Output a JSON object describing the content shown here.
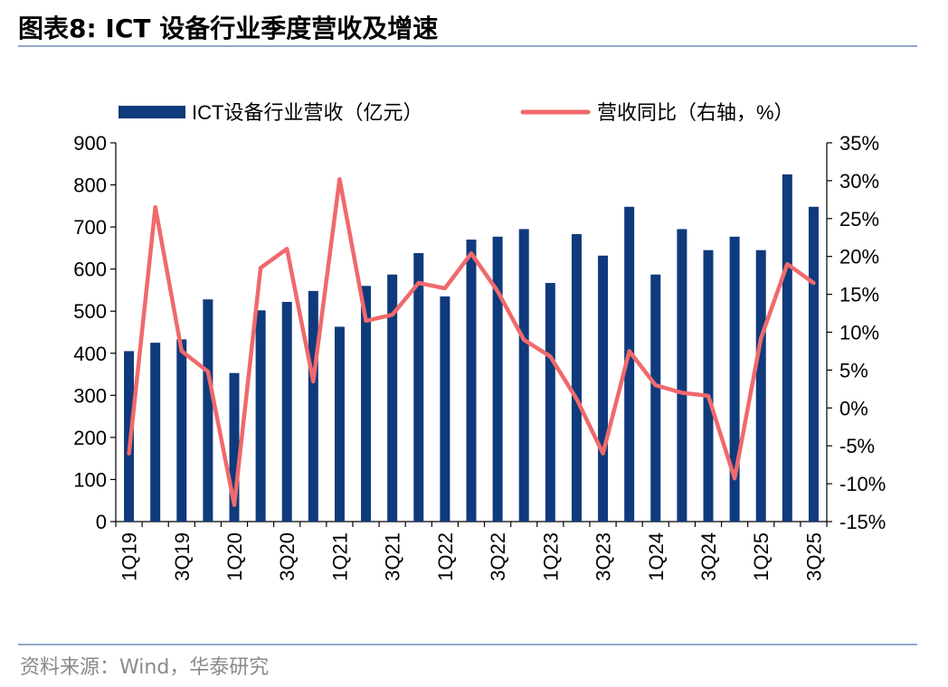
{
  "figure_title": "图表8:  ICT 设备行业季度营收及增速",
  "source": "资料来源：Wind，华泰研究",
  "colors": {
    "bar": "#0f3a7c",
    "line": "#f0696b",
    "rule": "#8fa8c8",
    "source": "#8a8a8a"
  },
  "chart_data": {
    "type": "bar+line",
    "categories": [
      "1Q19",
      "2Q19",
      "3Q19",
      "4Q19",
      "1Q20",
      "2Q20",
      "3Q20",
      "4Q20",
      "1Q21",
      "2Q21",
      "3Q21",
      "4Q21",
      "1Q22",
      "2Q22",
      "3Q22",
      "4Q22",
      "1Q23",
      "2Q23",
      "3Q23",
      "4Q23",
      "1Q24",
      "2Q24",
      "3Q24",
      "4Q24",
      "1Q25",
      "2Q25",
      "3Q25"
    ],
    "xtick_labels": [
      "1Q19",
      "",
      "3Q19",
      "",
      "1Q20",
      "",
      "3Q20",
      "",
      "1Q21",
      "",
      "3Q21",
      "",
      "1Q22",
      "",
      "3Q22",
      "",
      "1Q23",
      "",
      "3Q23",
      "",
      "1Q24",
      "",
      "3Q24",
      "",
      "1Q25",
      "",
      "3Q25"
    ],
    "series": [
      {
        "name": "ICT设备行业营收（亿元）",
        "type": "bar",
        "axis": "left",
        "values": [
          405,
          425,
          433,
          528,
          353,
          502,
          522,
          548,
          463,
          560,
          587,
          638,
          535,
          670,
          677,
          695,
          567,
          683,
          632,
          748,
          587,
          695,
          645,
          677,
          645,
          825,
          748
        ]
      },
      {
        "name": "营收同比（右轴，%）",
        "type": "line",
        "axis": "right",
        "values": [
          -6.0,
          26.5,
          7.5,
          4.8,
          -12.8,
          18.5,
          21.0,
          3.5,
          30.2,
          11.5,
          12.3,
          16.5,
          15.8,
          20.4,
          15.4,
          9.0,
          6.8,
          1.2,
          -6.0,
          7.5,
          3.0,
          2.0,
          1.6,
          -9.3,
          9.2,
          19.0,
          16.5
        ]
      }
    ],
    "left_axis": {
      "min": 0,
      "max": 900,
      "step": 100,
      "tick_labels": [
        "0",
        "100",
        "200",
        "300",
        "400",
        "500",
        "600",
        "700",
        "800",
        "900"
      ]
    },
    "right_axis": {
      "min": -15,
      "max": 35,
      "step": 5,
      "tick_labels": [
        "-15%",
        "-10%",
        "-5%",
        "0%",
        "5%",
        "10%",
        "15%",
        "20%",
        "25%",
        "30%",
        "35%"
      ]
    },
    "legend": [
      {
        "label": "ICT设备行业营收（亿元）",
        "kind": "bar"
      },
      {
        "label": "营收同比（右轴，%）",
        "kind": "line"
      }
    ],
    "legend_position": "top",
    "grid": false
  }
}
